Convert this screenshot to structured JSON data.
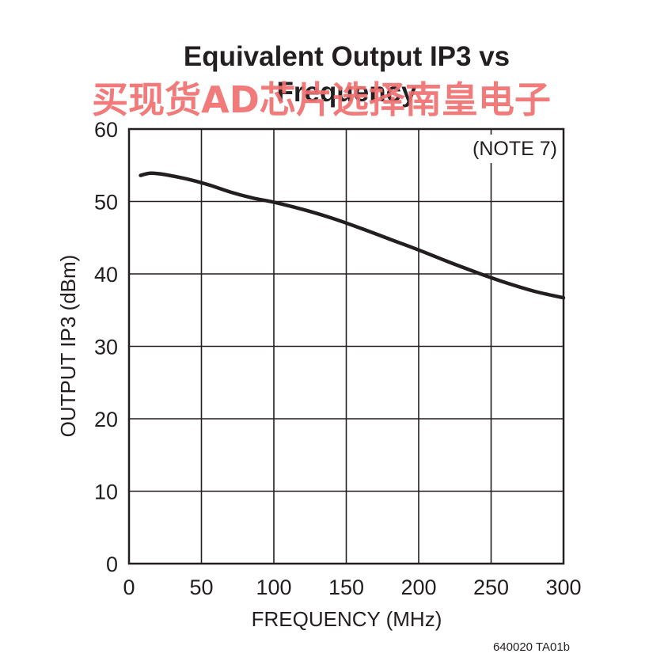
{
  "chart_data": {
    "type": "line",
    "title": "Equivalent Output IP3 vs Frequency",
    "title_lines": [
      "Equivalent Output IP3 vs",
      "Frequency"
    ],
    "xlabel": "FREQUENCY (MHz)",
    "ylabel": "OUTPUT IP3 (dBm)",
    "xlim": [
      0,
      300
    ],
    "ylim": [
      0,
      60
    ],
    "xticks": [
      0,
      50,
      100,
      150,
      200,
      250,
      300
    ],
    "yticks": [
      0,
      10,
      20,
      30,
      40,
      50,
      60
    ],
    "grid": true,
    "annotation": "(NOTE 7)",
    "series": [
      {
        "x": [
          8,
          15,
          25,
          40,
          55,
          70,
          85,
          100,
          120,
          140,
          160,
          180,
          200,
          220,
          240,
          260,
          280,
          300
        ],
        "y": [
          53.6,
          53.9,
          53.7,
          53.1,
          52.3,
          51.3,
          50.5,
          49.9,
          48.9,
          47.7,
          46.3,
          44.8,
          43.3,
          41.7,
          40.2,
          38.8,
          37.6,
          36.7
        ]
      }
    ]
  },
  "watermark": "买现货AD芯片选择南皇电子",
  "figure_id": "640020 TA01b"
}
